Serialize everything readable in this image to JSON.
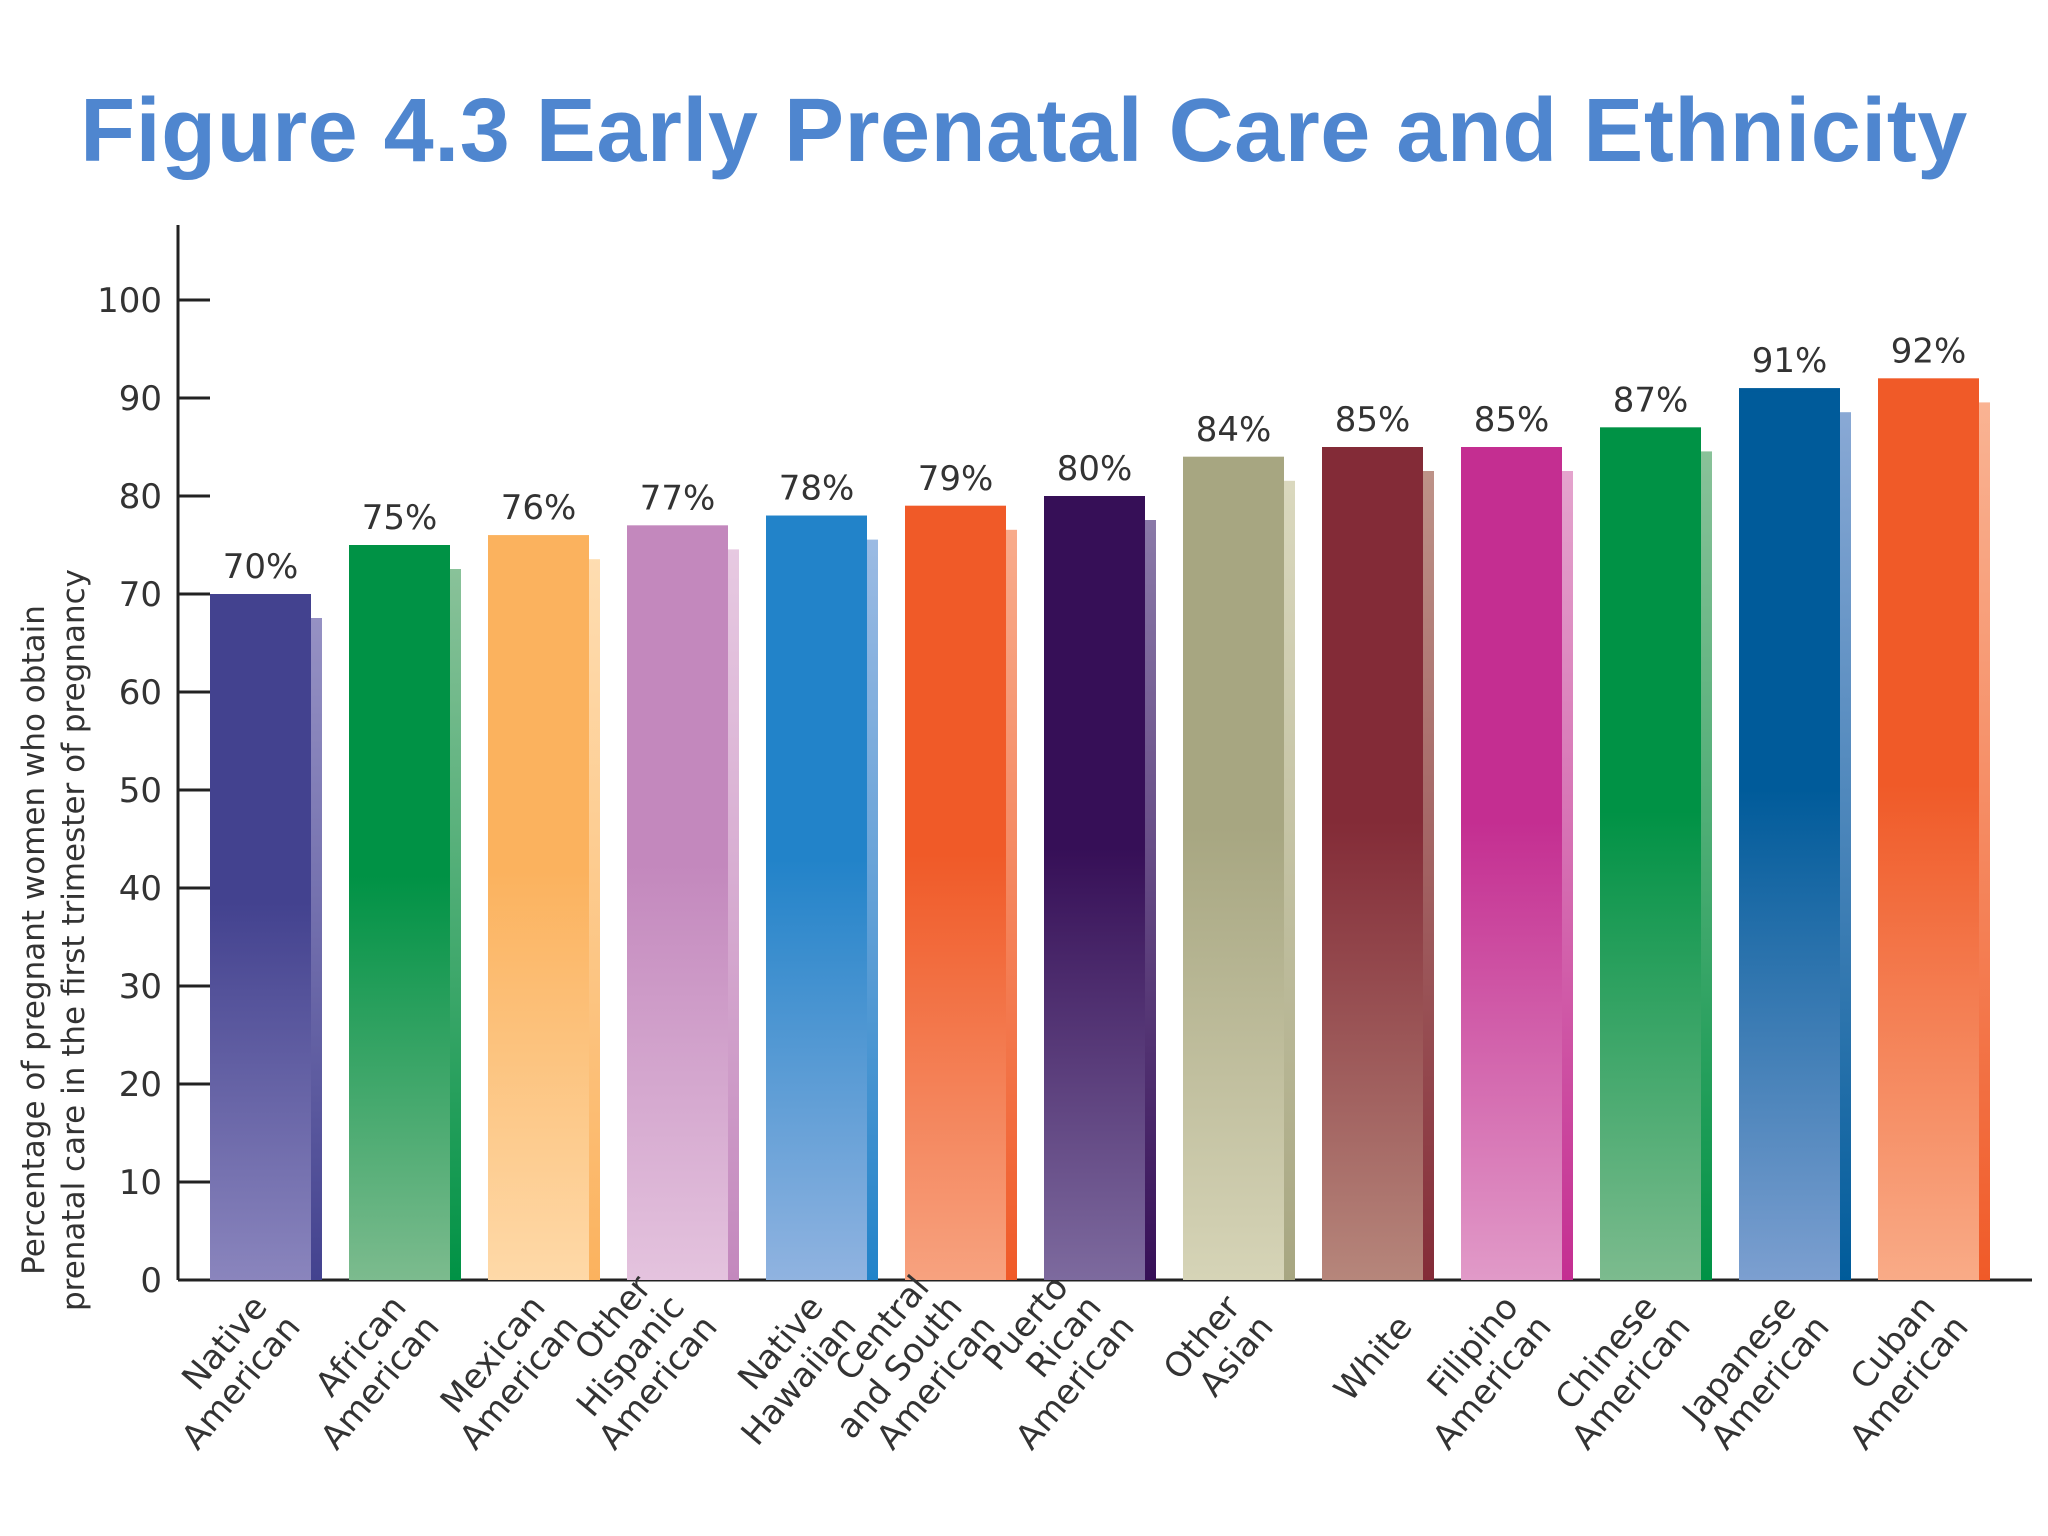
{
  "page": {
    "title": "Figure 4.3 Early Prenatal Care and Ethnicity"
  },
  "chart_data": {
    "type": "bar",
    "ylabel_lines": [
      "Percentage of pregnant women who obtain",
      "prenatal care in the first trimester of pregnancy"
    ],
    "ylim": [
      0,
      100
    ],
    "yticks": [
      0,
      10,
      20,
      30,
      40,
      50,
      60,
      70,
      80,
      90,
      100
    ],
    "grid": false,
    "categories": [
      [
        "Native",
        "American"
      ],
      [
        "African",
        "American"
      ],
      [
        "Mexican",
        "American"
      ],
      [
        "Other",
        "Hispanic",
        "American"
      ],
      [
        "Native",
        "Hawaiian"
      ],
      [
        "Central",
        "and South",
        "American"
      ],
      [
        "Puerto",
        "Rican",
        "American"
      ],
      [
        "Other",
        "Asian"
      ],
      [
        "White"
      ],
      [
        "Filipino",
        "American"
      ],
      [
        "Chinese",
        "American"
      ],
      [
        "Japanese",
        "American"
      ],
      [
        "Cuban",
        "American"
      ]
    ],
    "values": [
      70,
      75,
      76,
      77,
      78,
      79,
      80,
      84,
      85,
      85,
      87,
      91,
      92
    ],
    "value_labels": [
      "70%",
      "75%",
      "76%",
      "77%",
      "78%",
      "79%",
      "80%",
      "84%",
      "85%",
      "85%",
      "87%",
      "91%",
      "92%"
    ],
    "colors": [
      {
        "top": "#43428f",
        "bottom": "#8a85bd"
      },
      {
        "top": "#009245",
        "bottom": "#7cbb8e"
      },
      {
        "top": "#fbb25e",
        "bottom": "#fed9a8"
      },
      {
        "top": "#c388bd",
        "bottom": "#e4c3de"
      },
      {
        "top": "#2283c9",
        "bottom": "#90b3e0"
      },
      {
        "top": "#f05a28",
        "bottom": "#f7a27f"
      },
      {
        "top": "#360f57",
        "bottom": "#7d6a9e"
      },
      {
        "top": "#a7a681",
        "bottom": "#d6d4b7"
      },
      {
        "top": "#832b37",
        "bottom": "#b6867b"
      },
      {
        "top": "#c42e91",
        "bottom": "#e19ac8"
      },
      {
        "top": "#009245",
        "bottom": "#7cbb8e"
      },
      {
        "top": "#005b9a",
        "bottom": "#7c9fd0"
      },
      {
        "top": "#f05a28",
        "bottom": "#f9ab87"
      }
    ]
  }
}
